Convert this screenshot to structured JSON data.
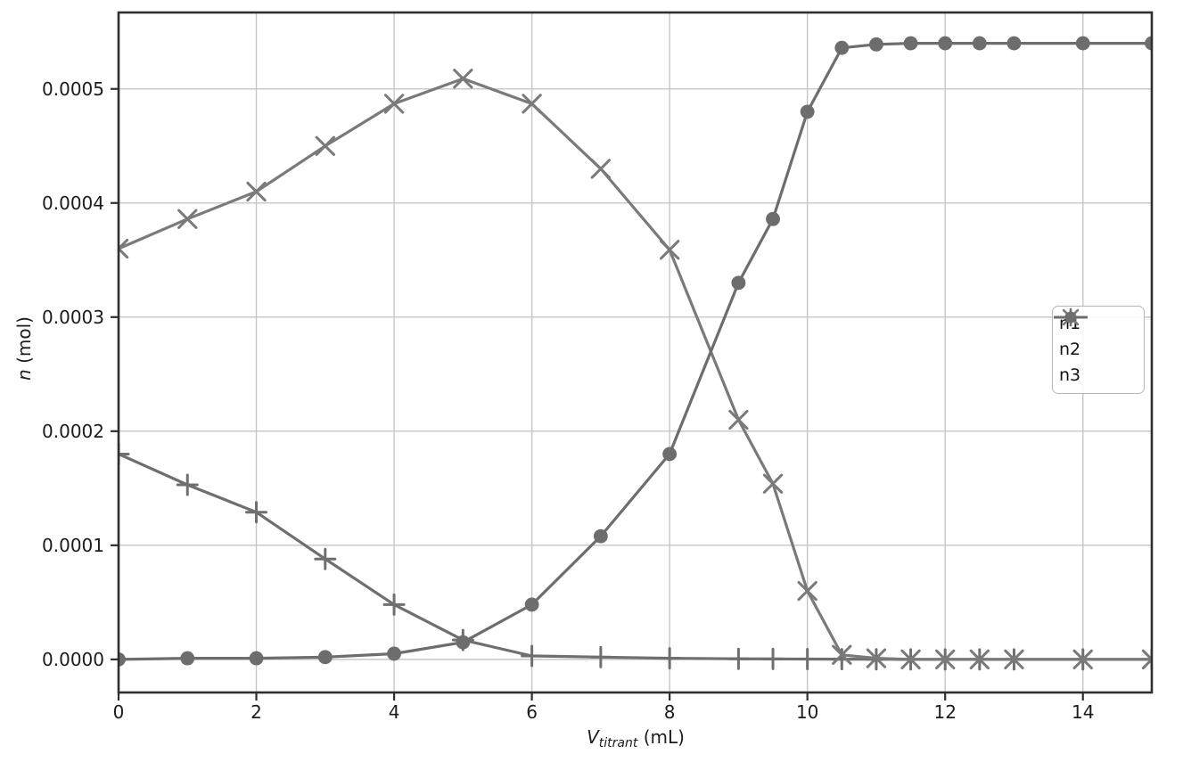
{
  "figure": {
    "background": "#ffffff"
  },
  "style": {
    "grid_color": "#c6c6c6",
    "spine_color": "#2f2f2f",
    "tick_label_color": "#1c1c1c",
    "legend_border": "#b5b5b5",
    "legend_bg": "#ffffff"
  },
  "chart_data": {
    "type": "line",
    "title": "",
    "xlabel": "V_titrant (mL)",
    "xlabel_parts": {
      "italic": "V",
      "subscript": "titrant",
      "rest": " (mL)"
    },
    "ylabel": "n (mol)",
    "ylabel_parts": {
      "italic": "n",
      "rest": " (mol)"
    },
    "xlim": [
      0,
      15
    ],
    "ylim": [
      -2.9e-05,
      0.000567
    ],
    "grid": true,
    "legend_position": "center-right",
    "x": [
      0,
      1,
      2,
      3,
      4,
      5,
      6,
      7,
      8,
      9,
      9.5,
      10,
      10.5,
      11,
      11.5,
      12,
      12.5,
      13,
      14,
      15
    ],
    "series": [
      {
        "name": "n1",
        "marker": "plus",
        "color": "#6f6f6f",
        "values": [
          0.00018,
          0.000153,
          0.000129,
          8.8e-05,
          4.8e-05,
          1.7e-05,
          3e-06,
          2e-06,
          1e-06,
          5e-07,
          4e-07,
          3e-07,
          2e-07,
          1e-07,
          0,
          0,
          0,
          0,
          0,
          0
        ]
      },
      {
        "name": "n2",
        "marker": "x",
        "color": "#7a7a7a",
        "values": [
          0.00036,
          0.000386,
          0.00041,
          0.00045,
          0.000487,
          0.000509,
          0.000487,
          0.00043,
          0.000359,
          0.00021,
          0.000154,
          6e-05,
          4e-06,
          1e-06,
          0,
          0,
          0,
          0,
          0,
          0
        ]
      },
      {
        "name": "n3",
        "marker": "circle",
        "color": "#6d6d6d",
        "values": [
          0,
          1e-06,
          1e-06,
          2e-06,
          5e-06,
          1.5e-05,
          4.8e-05,
          0.000108,
          0.00018,
          0.00033,
          0.000386,
          0.00048,
          0.000536,
          0.000539,
          0.00054,
          0.00054,
          0.00054,
          0.00054,
          0.00054,
          0.00054
        ]
      }
    ],
    "xticks": {
      "values": [
        0,
        2,
        4,
        6,
        8,
        10,
        12,
        14
      ],
      "labels": [
        "0",
        "2",
        "4",
        "6",
        "8",
        "10",
        "12",
        "14"
      ]
    },
    "yticks": {
      "values": [
        0,
        0.0001,
        0.0002,
        0.0003,
        0.0004,
        0.0005
      ],
      "labels": [
        "0.0000",
        "0.0001",
        "0.0002",
        "0.0003",
        "0.0004",
        "0.0005"
      ]
    },
    "legend": [
      "n1",
      "n2",
      "n3"
    ]
  }
}
